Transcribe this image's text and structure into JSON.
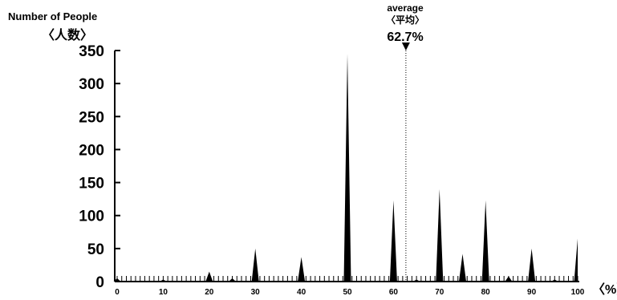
{
  "chart_data": {
    "type": "area",
    "title": "",
    "ylabel": "Number of People",
    "ylabel_sub": "〈人数〉",
    "xlabel": "〈%〉",
    "xlim": [
      0,
      100
    ],
    "ylim": [
      0,
      350
    ],
    "y_ticks": [
      "0",
      "50",
      "100",
      "150",
      "200",
      "250",
      "300",
      "350"
    ],
    "x_ticks": [
      "0",
      "10",
      "20",
      "30",
      "40",
      "50",
      "60",
      "70",
      "80",
      "90",
      "100"
    ],
    "grid": false,
    "legend": "none",
    "series_color": "#000000",
    "points": [
      {
        "x": 0,
        "y": 5
      },
      {
        "x": 10,
        "y": 3
      },
      {
        "x": 20,
        "y": 15
      },
      {
        "x": 25,
        "y": 5
      },
      {
        "x": 30,
        "y": 50
      },
      {
        "x": 40,
        "y": 37
      },
      {
        "x": 50,
        "y": 345
      },
      {
        "x": 60,
        "y": 123
      },
      {
        "x": 65,
        "y": 3
      },
      {
        "x": 70,
        "y": 140
      },
      {
        "x": 75,
        "y": 42
      },
      {
        "x": 80,
        "y": 123
      },
      {
        "x": 85,
        "y": 8
      },
      {
        "x": 90,
        "y": 50
      },
      {
        "x": 95,
        "y": 3
      },
      {
        "x": 100,
        "y": 65
      }
    ],
    "average": {
      "label": "average",
      "label_sub": "〈平均〉",
      "value": 62.7,
      "value_text": "62.7%"
    }
  }
}
